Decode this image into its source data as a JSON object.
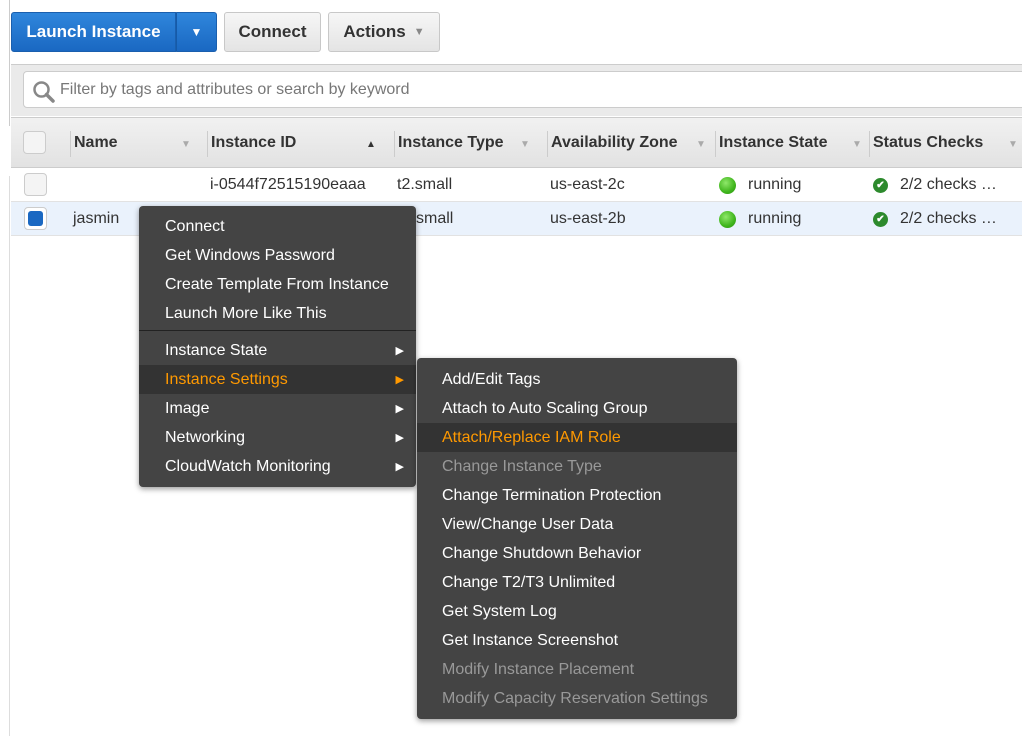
{
  "toolbar": {
    "launch_label": "Launch Instance",
    "connect_label": "Connect",
    "actions_label": "Actions"
  },
  "search": {
    "placeholder": "Filter by tags and attributes or search by keyword"
  },
  "table": {
    "columns": [
      "Name",
      "Instance ID",
      "Instance Type",
      "Availability Zone",
      "Instance State",
      "Status Checks"
    ],
    "rows": [
      {
        "name": "",
        "id": "i-0544f72515190eaaa",
        "type": "t2.small",
        "zone": "us-east-2c",
        "state": "running",
        "checks": "2/2 checks …",
        "selected": false
      },
      {
        "name": "jasmin",
        "id": "",
        "type": "t2.small",
        "type_visible": "small",
        "zone": "us-east-2b",
        "state": "running",
        "checks": "2/2 checks …",
        "selected": true
      }
    ]
  },
  "context_menu": {
    "items": [
      "Connect",
      "Get Windows Password",
      "Create Template From Instance",
      "Launch More Like This"
    ],
    "submenus": [
      "Instance State",
      "Instance Settings",
      "Image",
      "Networking",
      "CloudWatch Monitoring"
    ],
    "active": "Instance Settings"
  },
  "submenu": {
    "items": [
      {
        "label": "Add/Edit Tags",
        "state": "normal"
      },
      {
        "label": "Attach to Auto Scaling Group",
        "state": "normal"
      },
      {
        "label": "Attach/Replace IAM Role",
        "state": "highlighted"
      },
      {
        "label": "Change Instance Type",
        "state": "disabled"
      },
      {
        "label": "Change Termination Protection",
        "state": "normal"
      },
      {
        "label": "View/Change User Data",
        "state": "normal"
      },
      {
        "label": "Change Shutdown Behavior",
        "state": "normal"
      },
      {
        "label": "Change T2/T3 Unlimited",
        "state": "normal"
      },
      {
        "label": "Get System Log",
        "state": "normal"
      },
      {
        "label": "Get Instance Screenshot",
        "state": "normal"
      },
      {
        "label": "Modify Instance Placement",
        "state": "disabled"
      },
      {
        "label": "Modify Capacity Reservation Settings",
        "state": "disabled"
      }
    ]
  },
  "colors": {
    "accent": "#1a68c2",
    "highlight": "#ff9900",
    "menu_bg": "#444444",
    "running": "#3fb51c"
  }
}
